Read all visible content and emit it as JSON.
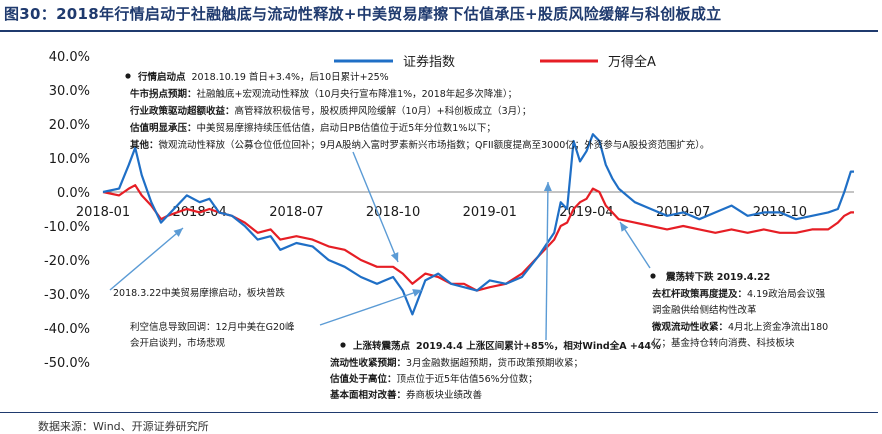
{
  "figure_title": "图30：2018年行情启动于社融触底与流动性释放+中美贸易摩擦下估值承压+股质风险缓解与科创板成立",
  "source": "数据来源：Wind、开源证券研究所",
  "colors": {
    "series1": "#1f6fc6",
    "series2": "#e61e25",
    "arrow": "#5b9bd5",
    "title": "#1f3a6e"
  },
  "chart_data": {
    "type": "line",
    "title": "图30：2018年行情启动于社融触底与流动性释放+中美贸易摩擦下估值承压+股质风险缓解与科创板成立",
    "xlabel": "",
    "ylabel": "",
    "ylim": [
      -50,
      40
    ],
    "y_ticks": [
      "40.0%",
      "30.0%",
      "20.0%",
      "10.0%",
      "0.0%",
      "-10.0%",
      "-20.0%",
      "-30.0%",
      "-40.0%",
      "-50.0%"
    ],
    "y_tick_values": [
      40,
      30,
      20,
      10,
      0,
      -10,
      -20,
      -30,
      -40,
      -50
    ],
    "x_ticks": [
      "2018-01",
      "2018-04",
      "2018-07",
      "2018-10",
      "2019-01",
      "2019-04",
      "2019-07",
      "2019-10"
    ],
    "x_tick_positions": [
      0,
      3,
      6,
      9,
      12,
      15,
      18,
      21
    ],
    "x_range_months": [
      0,
      23.3
    ],
    "legend_position": "top-right",
    "series": [
      {
        "name": "证券指数",
        "x": [
          0,
          0.5,
          0.8,
          1.0,
          1.2,
          1.5,
          1.8,
          2.0,
          2.3,
          2.6,
          3.0,
          3.3,
          3.6,
          4.0,
          4.4,
          4.8,
          5.2,
          5.5,
          6.0,
          6.5,
          7.0,
          7.5,
          8.0,
          8.5,
          9.0,
          9.3,
          9.6,
          10.0,
          10.4,
          10.8,
          11.2,
          11.6,
          12.0,
          12.5,
          13.0,
          13.5,
          14.0,
          14.2,
          14.4,
          14.6,
          14.8,
          15.0,
          15.2,
          15.4,
          15.6,
          15.8,
          16.0,
          16.5,
          17.0,
          17.5,
          18.0,
          18.5,
          19.0,
          19.5,
          20.0,
          20.5,
          21.0,
          21.5,
          22.0,
          22.5,
          22.8,
          23.0,
          23.2,
          23.3
        ],
        "values": [
          0,
          1,
          8,
          13,
          5,
          -3,
          -9,
          -7,
          -4,
          -1,
          -3,
          -2,
          -6,
          -7,
          -10,
          -14,
          -13,
          -17,
          -15,
          -16,
          -20,
          -22,
          -25,
          -27,
          -25,
          -29,
          -36,
          -26,
          -24,
          -27,
          -28,
          -29,
          -26,
          -27,
          -25,
          -19,
          -12,
          -3,
          -5,
          15,
          9,
          12,
          17,
          15,
          8,
          4,
          1,
          -3,
          -5,
          -7,
          -6,
          -8,
          -6,
          -4,
          -7,
          -6,
          -6,
          -8,
          -7,
          -6,
          -5,
          0,
          6,
          6
        ]
      },
      {
        "name": "万得全A",
        "x": [
          0,
          0.5,
          0.8,
          1.0,
          1.2,
          1.5,
          1.8,
          2.0,
          2.3,
          2.6,
          3.0,
          3.3,
          3.6,
          4.0,
          4.4,
          4.8,
          5.2,
          5.5,
          6.0,
          6.5,
          7.0,
          7.5,
          8.0,
          8.5,
          9.0,
          9.3,
          9.6,
          10.0,
          10.4,
          10.8,
          11.2,
          11.6,
          12.0,
          12.5,
          13.0,
          13.5,
          14.0,
          14.2,
          14.4,
          14.6,
          14.8,
          15.0,
          15.2,
          15.4,
          15.6,
          15.8,
          16.0,
          16.5,
          17.0,
          17.5,
          18.0,
          18.5,
          19.0,
          19.5,
          20.0,
          20.5,
          21.0,
          21.5,
          22.0,
          22.5,
          22.8,
          23.0,
          23.2,
          23.3
        ],
        "values": [
          0,
          -1,
          1,
          2,
          -1,
          -4,
          -8,
          -7,
          -6,
          -5,
          -6,
          -5,
          -6,
          -7,
          -9,
          -12,
          -11,
          -14,
          -13,
          -14,
          -16,
          -17,
          -20,
          -22,
          -22,
          -24,
          -27,
          -24,
          -25,
          -27,
          -27,
          -29,
          -28,
          -27,
          -24,
          -19,
          -14,
          -10,
          -9,
          -5,
          -3,
          -2,
          1,
          0,
          -4,
          -6,
          -8,
          -9,
          -10,
          -11,
          -10,
          -11,
          -12,
          -11,
          -12,
          -11,
          -12,
          -12,
          -11,
          -11,
          -9,
          -7,
          -6,
          -6
        ]
      }
    ]
  },
  "legend": {
    "s1": "证券指数",
    "s2": "万得全A"
  },
  "annotations": {
    "box1": {
      "l1_head": "行情启动点",
      "l1_body": "2018.10.19 首日+3.4%，后10日累计+25%",
      "l2_head": "牛市拐点预期：",
      "l2_body": "社融触底+宏观流动性释放（10月央行宣布降准1%，2018年起多次降准）；",
      "l3_head": "行业政策驱动超额收益：",
      "l3_body": "高管释放积极信号，股权质押风险缓解（10月）+科创板成立（3月）；",
      "l4_head": "估值明显承压：",
      "l4_body": "中美贸易摩擦持续压低估值，启动日PB估值位于近5年分位数1%以下；",
      "l5_head": "其他：",
      "l5_body": "微观流动性释放（公募仓位低位回补；9月A股纳入富时罗素新兴市场指数；QFII额度提高至3000亿；外资参与A股投资范围扩充）。"
    },
    "a2": "2018.3.22中美贸易摩擦启动，板块普跌",
    "a3_l1": "利空信息导致回调：12月中美在G20峰",
    "a3_l2": "会开启谈判，市场悲观",
    "a4": {
      "l1_head": "上涨转震荡点",
      "l1_body": "2019.4.4 上涨区间累计+85%，相对Wind全A +44%",
      "l2_head": "流动性收紧预期：",
      "l2_body": "3月金融数据超预期，货币政策预期收紧；",
      "l3_head": "估值处于高位：",
      "l3_body": "顶点位于近5年估值56%分位数；",
      "l4_head": "基本面相对改善：",
      "l4_body": "券商板块业绩改善"
    },
    "a5": {
      "l1": "震荡转下跌 2019.4.22",
      "l2_head": "去杠杆政策再度提及：",
      "l2_body": "4.19政治局会议强",
      "l3": "调金融供给侧结构性改革",
      "l4_head": "微观流动性收紧：",
      "l4_body": "4月北上资金净流出180",
      "l5": "亿；基金持仓转向消费、科技板块"
    }
  }
}
